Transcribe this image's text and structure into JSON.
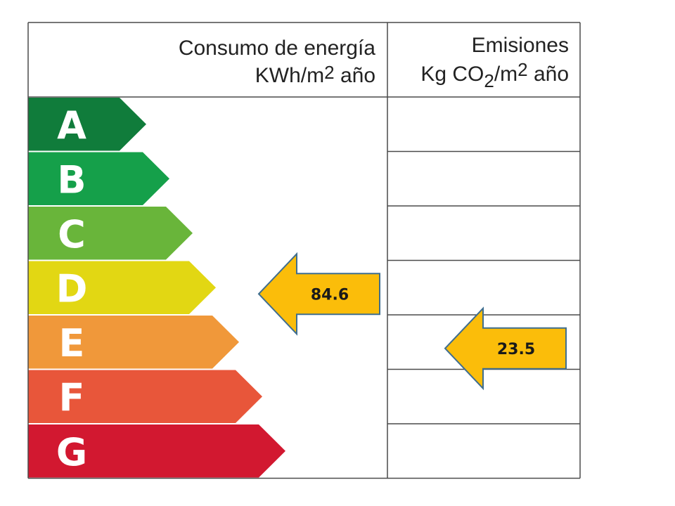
{
  "header": {
    "consumo_line1": "Consumo de energía",
    "consumo_line2_a": "KWh/m",
    "consumo_line2_sup": "2",
    "consumo_line2_b": " año",
    "emisiones_line1": "Emisiones",
    "emisiones_line2_a": "Kg CO",
    "emisiones_line2_sub": "2",
    "emisiones_line2_b": "/m",
    "emisiones_line2_sup": "2",
    "emisiones_line2_c": " año"
  },
  "classes": [
    {
      "letter": "A",
      "color": "#107c3b"
    },
    {
      "letter": "B",
      "color": "#15a04a"
    },
    {
      "letter": "C",
      "color": "#69b53a"
    },
    {
      "letter": "D",
      "color": "#e2d713"
    },
    {
      "letter": "E",
      "color": "#f0983a"
    },
    {
      "letter": "F",
      "color": "#e8563a"
    },
    {
      "letter": "G",
      "color": "#d21830"
    }
  ],
  "indicators": {
    "consumo": {
      "value": "84.6",
      "class": "D",
      "color": "#fbbd0a"
    },
    "emisiones": {
      "value": "23.5",
      "class": "E",
      "color": "#fbbd0a"
    }
  }
}
